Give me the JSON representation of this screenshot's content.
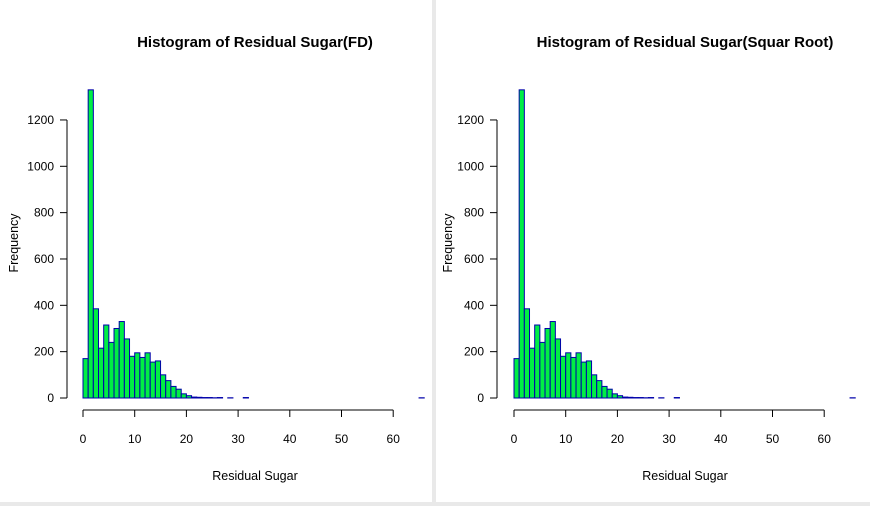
{
  "chart_data": [
    {
      "type": "bar",
      "title": "Histogram of Residual Sugar(FD)",
      "xlabel": "Residual Sugar",
      "ylabel": "Frequency",
      "xlim": [
        0,
        65.8
      ],
      "ylim": [
        0,
        1300
      ],
      "x_ticks": [
        "0",
        "10",
        "20",
        "30",
        "40",
        "50",
        "60"
      ],
      "y_ticks": [
        "0",
        "200",
        "400",
        "600",
        "800",
        "1000",
        "1200"
      ],
      "bin_width": 1,
      "bin_start": 0,
      "values": [
        170,
        1330,
        385,
        215,
        315,
        240,
        300,
        330,
        255,
        180,
        195,
        175,
        195,
        155,
        160,
        100,
        75,
        50,
        38,
        18,
        10,
        4,
        3,
        2,
        2,
        1,
        2,
        0,
        1,
        0,
        0,
        2,
        0,
        0,
        0,
        0,
        0,
        0,
        0,
        0,
        0,
        0,
        0,
        0,
        0,
        0,
        0,
        0,
        0,
        0,
        0,
        0,
        0,
        0,
        0,
        0,
        0,
        0,
        0,
        0,
        0,
        0,
        0,
        0,
        0,
        1
      ],
      "fill_color": "#00ee44",
      "stroke_color": "#0000aa"
    },
    {
      "type": "bar",
      "title": "Histogram of Residual Sugar(Squar Root)",
      "xlabel": "Residual Sugar",
      "ylabel": "Frequency",
      "xlim": [
        0,
        65.8
      ],
      "ylim": [
        0,
        1300
      ],
      "x_ticks": [
        "0",
        "10",
        "20",
        "30",
        "40",
        "50",
        "60"
      ],
      "y_ticks": [
        "0",
        "200",
        "400",
        "600",
        "800",
        "1000",
        "1200"
      ],
      "bin_width": 1,
      "bin_start": 0,
      "values": [
        170,
        1330,
        385,
        215,
        315,
        240,
        300,
        330,
        255,
        180,
        195,
        175,
        195,
        155,
        160,
        100,
        75,
        50,
        38,
        18,
        10,
        4,
        3,
        2,
        2,
        1,
        2,
        0,
        1,
        0,
        0,
        2,
        0,
        0,
        0,
        0,
        0,
        0,
        0,
        0,
        0,
        0,
        0,
        0,
        0,
        0,
        0,
        0,
        0,
        0,
        0,
        0,
        0,
        0,
        0,
        0,
        0,
        0,
        0,
        0,
        0,
        0,
        0,
        0,
        0,
        1
      ],
      "fill_color": "#00ee44",
      "stroke_color": "#0000aa"
    }
  ]
}
